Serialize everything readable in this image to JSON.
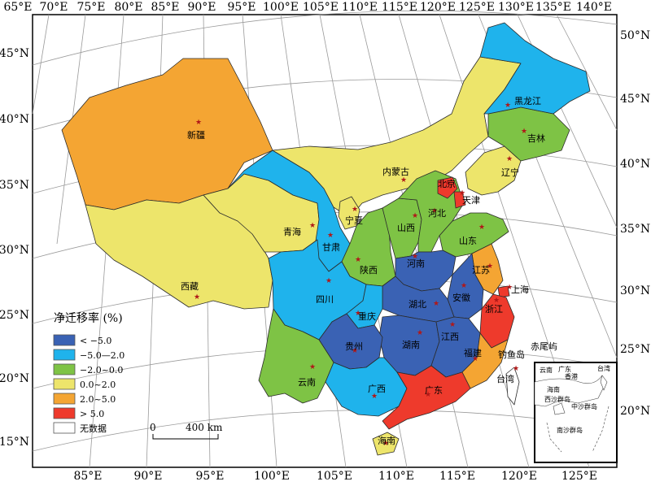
{
  "map": {
    "legend_title": "净迁移率 (%)",
    "legend": [
      {
        "label": "< −5.0",
        "color": "#3a62b4"
      },
      {
        "label": "−5.0—2.0",
        "color": "#1fb3ec"
      },
      {
        "label": "−2.0~0.0",
        "color": "#7ec345"
      },
      {
        "label": "0.0~2.0",
        "color": "#ede56b"
      },
      {
        "label": "2.0~5.0",
        "color": "#f4a533"
      },
      {
        "label": "> 5.0",
        "color": "#ee3a2c"
      },
      {
        "label": "无数据",
        "color": "#ffffff"
      }
    ],
    "scale": {
      "zero": "0",
      "label": "400 km"
    },
    "lon_ticks_top": [
      "65°E",
      "70°E",
      "75°E",
      "80°E",
      "85°E",
      "90°E",
      "95°E",
      "100°E",
      "105°E",
      "110°E",
      "115°E",
      "120°E",
      "125°E",
      "130°E",
      "135°E",
      "140°E"
    ],
    "lon_ticks_bottom": [
      "85°E",
      "90°E",
      "95°E",
      "100°E",
      "105°E",
      "110°E",
      "115°E",
      "120°E",
      "125°E"
    ],
    "lat_ticks_left": [
      "45°N",
      "40°N",
      "35°N",
      "30°N",
      "25°N",
      "20°N",
      "15°N"
    ],
    "lat_ticks_right": [
      "50°N",
      "45°N",
      "40°N",
      "35°N",
      "30°N",
      "25°N",
      "20°N"
    ],
    "provinces": [
      {
        "name": "新疆",
        "class": "2.0~5.0"
      },
      {
        "name": "西藏",
        "class": "0.0~2.0"
      },
      {
        "name": "青海",
        "class": "0.0~2.0"
      },
      {
        "name": "甘肃",
        "class": "−5.0—2.0"
      },
      {
        "name": "内蒙古",
        "class": "0.0~2.0"
      },
      {
        "name": "宁夏",
        "class": "0.0~2.0"
      },
      {
        "name": "陕西",
        "class": "−2.0~0.0"
      },
      {
        "name": "山西",
        "class": "−2.0~0.0"
      },
      {
        "name": "河北",
        "class": "−2.0~0.0"
      },
      {
        "name": "北京",
        "class": "> 5.0"
      },
      {
        "name": "天津",
        "class": "> 5.0"
      },
      {
        "name": "辽宁",
        "class": "0.0~2.0"
      },
      {
        "name": "吉林",
        "class": "−2.0~0.0"
      },
      {
        "name": "黑龙江",
        "class": "−5.0—2.0"
      },
      {
        "name": "山东",
        "class": "−2.0~0.0"
      },
      {
        "name": "河南",
        "class": "< −5.0"
      },
      {
        "name": "江苏",
        "class": "2.0~5.0"
      },
      {
        "name": "安徽",
        "class": "< −5.0"
      },
      {
        "name": "上海",
        "class": "> 5.0"
      },
      {
        "name": "浙江",
        "class": "> 5.0"
      },
      {
        "name": "湖北",
        "class": "< −5.0"
      },
      {
        "name": "湖南",
        "class": "< −5.0"
      },
      {
        "name": "江西",
        "class": "< −5.0"
      },
      {
        "name": "福建",
        "class": "2.0~5.0"
      },
      {
        "name": "四川",
        "class": "−5.0—2.0"
      },
      {
        "name": "重庆",
        "class": "−5.0—2.0"
      },
      {
        "name": "贵州",
        "class": "< −5.0"
      },
      {
        "name": "云南",
        "class": "−2.0~0.0"
      },
      {
        "name": "广西",
        "class": "−5.0—2.0"
      },
      {
        "name": "广东",
        "class": "> 5.0"
      },
      {
        "name": "海南",
        "class": "0.0~2.0"
      },
      {
        "name": "台湾",
        "class": "无数据"
      }
    ],
    "extra_labels": {
      "diaoyu": "钓鱼岛",
      "chiwei": "赤尾屿"
    },
    "inset": {
      "yunnan": "云南",
      "guangdong": "广东",
      "hongkong": "香港",
      "taiwan": "台湾",
      "hainan": "海南",
      "xisha": "西沙群岛",
      "zhongsha": "中沙群岛",
      "nansha": "南沙群岛"
    }
  }
}
